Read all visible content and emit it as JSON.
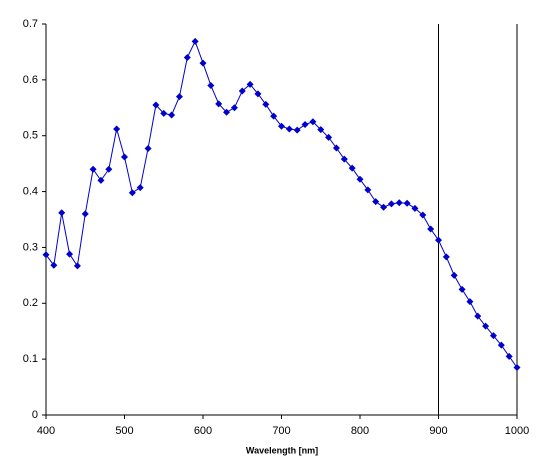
{
  "chart_data": {
    "type": "line",
    "xlabel": "Wavelength [nm]",
    "x": [
      400,
      410,
      420,
      430,
      440,
      450,
      460,
      470,
      480,
      490,
      500,
      510,
      520,
      530,
      540,
      550,
      560,
      570,
      580,
      590,
      600,
      610,
      620,
      630,
      640,
      650,
      660,
      670,
      680,
      690,
      700,
      710,
      720,
      730,
      740,
      750,
      760,
      770,
      780,
      790,
      800,
      810,
      820,
      830,
      840,
      850,
      860,
      870,
      880,
      890,
      900,
      910,
      920,
      930,
      940,
      950,
      960,
      970,
      980,
      990,
      1000
    ],
    "series": [
      {
        "color": "#0000cc",
        "values": [
          0.287,
          0.268,
          0.362,
          0.288,
          0.267,
          0.36,
          0.44,
          0.42,
          0.44,
          0.512,
          0.462,
          0.398,
          0.407,
          0.477,
          0.555,
          0.54,
          0.537,
          0.57,
          0.64,
          0.669,
          0.63,
          0.59,
          0.557,
          0.542,
          0.55,
          0.58,
          0.592,
          0.575,
          0.556,
          0.535,
          0.517,
          0.512,
          0.51,
          0.52,
          0.525,
          0.511,
          0.497,
          0.478,
          0.458,
          0.442,
          0.422,
          0.403,
          0.382,
          0.372,
          0.378,
          0.38,
          0.379,
          0.37,
          0.358,
          0.333,
          0.313,
          0.283,
          0.25,
          0.225,
          0.203,
          0.177,
          0.159,
          0.142,
          0.125,
          0.105,
          0.085
        ]
      }
    ],
    "xlim": [
      400,
      1000
    ],
    "ylim": [
      0,
      0.7
    ],
    "xticks": [
      400,
      500,
      600,
      700,
      800,
      900,
      1000
    ],
    "yticks": [
      0,
      0.1,
      0.2,
      0.3,
      0.4,
      0.5,
      0.6,
      0.7
    ],
    "vlines": [
      900,
      1000
    ]
  }
}
